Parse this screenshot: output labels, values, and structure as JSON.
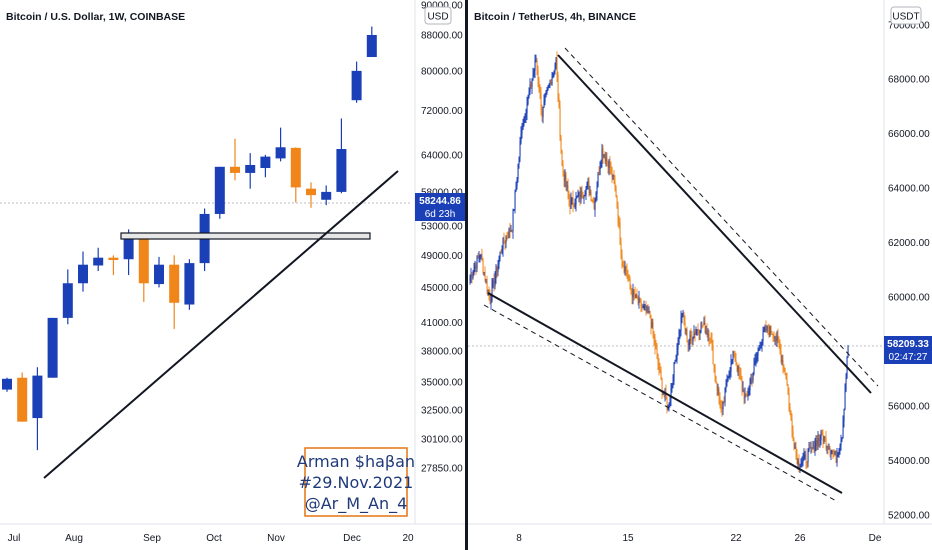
{
  "chart_data": [
    {
      "type": "candlestick",
      "title": "Bitcoin / U.S. Dollar, 1W, COINBASE",
      "currency": "USD",
      "price_ticks": [
        "90000.00",
        "88000.00",
        "80000.00",
        "72000.00",
        "64000.00",
        "58000.00",
        "53000.00",
        "49000.00",
        "45000.00",
        "41000.00",
        "38000.00",
        "35000.00",
        "32500.00",
        "30100.00",
        "27850.00"
      ],
      "time_labels": [
        "Jul",
        "Aug",
        "Sep",
        "Oct",
        "Nov",
        "Dec",
        "20"
      ],
      "last_price": "58244.86",
      "countdown": "6d 23h",
      "candles": [
        {
          "o": 34300,
          "c": 35300,
          "h": 35400,
          "l": 34100
        },
        {
          "o": 35400,
          "c": 31500,
          "h": 35900,
          "l": 31500
        },
        {
          "o": 31800,
          "c": 35600,
          "h": 36400,
          "l": 29200
        },
        {
          "o": 35400,
          "c": 41500,
          "h": 41500,
          "l": 35400
        },
        {
          "o": 41500,
          "c": 45500,
          "h": 47200,
          "l": 40800
        },
        {
          "o": 45500,
          "c": 47800,
          "h": 49500,
          "l": 44500
        },
        {
          "o": 47700,
          "c": 48700,
          "h": 50000,
          "l": 47000
        },
        {
          "o": 48700,
          "c": 48400,
          "h": 49000,
          "l": 46500
        },
        {
          "o": 48500,
          "c": 51500,
          "h": 52500,
          "l": 46500
        },
        {
          "o": 51500,
          "c": 45500,
          "h": 51800,
          "l": 43300
        },
        {
          "o": 45400,
          "c": 47800,
          "h": 48800,
          "l": 45000
        },
        {
          "o": 47800,
          "c": 43200,
          "h": 49000,
          "l": 40300
        },
        {
          "o": 43000,
          "c": 48000,
          "h": 48500,
          "l": 42400
        },
        {
          "o": 48000,
          "c": 54700,
          "h": 55500,
          "l": 47000
        },
        {
          "o": 54700,
          "c": 62000,
          "h": 62000,
          "l": 54000
        },
        {
          "o": 62000,
          "c": 61000,
          "h": 66800,
          "l": 59800
        },
        {
          "o": 61000,
          "c": 62300,
          "h": 64300,
          "l": 58500
        },
        {
          "o": 61800,
          "c": 63700,
          "h": 64000,
          "l": 60300
        },
        {
          "o": 63400,
          "c": 65300,
          "h": 68800,
          "l": 62900
        },
        {
          "o": 65200,
          "c": 58700,
          "h": 65300,
          "l": 56400
        },
        {
          "o": 58500,
          "c": 57500,
          "h": 59500,
          "l": 55600
        },
        {
          "o": 56800,
          "c": 58000,
          "h": 59000,
          "l": 56000
        },
        {
          "o": 58000,
          "c": 65000,
          "h": 70500,
          "l": 57800
        },
        {
          "o": 74000,
          "c": 80000,
          "h": 82000,
          "l": 73500
        },
        {
          "o": 83000,
          "c": 88000,
          "h": 90000,
          "l": 83000
        }
      ],
      "annotations": {
        "support_zone": [
          53300,
          53900
        ]
      },
      "watermark": [
        "Arman $haβan",
        "#29.Nov.2021",
        "@Ar_M_An_4"
      ]
    },
    {
      "type": "candlestick",
      "title": "Bitcoin / TetherUS, 4h, BINANCE",
      "currency": "USDT",
      "price_ticks": [
        "70000.00",
        "68000.00",
        "66000.00",
        "64000.00",
        "62000.00",
        "60000.00",
        "58000.00",
        "56000.00",
        "54000.00",
        "52000.00"
      ],
      "time_labels": [
        "8",
        "15",
        "22",
        "26",
        "De"
      ],
      "last_price": "58209.33",
      "countdown": "02:47:27",
      "path": [
        [
          0,
          60700
        ],
        [
          10,
          61600
        ],
        [
          20,
          59900
        ],
        [
          32,
          61900
        ],
        [
          42,
          62600
        ],
        [
          52,
          66300
        ],
        [
          60,
          67600
        ],
        [
          66,
          68700
        ],
        [
          72,
          66700
        ],
        [
          78,
          67600
        ],
        [
          86,
          68700
        ],
        [
          92,
          64800
        ],
        [
          100,
          63400
        ],
        [
          110,
          63700
        ],
        [
          118,
          64100
        ],
        [
          124,
          63400
        ],
        [
          132,
          65400
        ],
        [
          140,
          64800
        ],
        [
          146,
          63800
        ],
        [
          152,
          61300
        ],
        [
          156,
          61000
        ],
        [
          160,
          60300
        ],
        [
          166,
          59900
        ],
        [
          172,
          59600
        ],
        [
          180,
          59300
        ],
        [
          186,
          58000
        ],
        [
          192,
          56700
        ],
        [
          198,
          55900
        ],
        [
          204,
          57400
        ],
        [
          212,
          59400
        ],
        [
          218,
          58300
        ],
        [
          224,
          58700
        ],
        [
          232,
          59000
        ],
        [
          240,
          58600
        ],
        [
          246,
          56900
        ],
        [
          252,
          55700
        ],
        [
          258,
          57200
        ],
        [
          264,
          57900
        ],
        [
          270,
          57000
        ],
        [
          276,
          56200
        ],
        [
          282,
          57100
        ],
        [
          290,
          58300
        ],
        [
          296,
          58800
        ],
        [
          304,
          58700
        ],
        [
          310,
          58000
        ],
        [
          316,
          57100
        ],
        [
          322,
          55100
        ],
        [
          328,
          53900
        ],
        [
          334,
          54000
        ],
        [
          340,
          54300
        ],
        [
          346,
          54700
        ],
        [
          352,
          54900
        ],
        [
          358,
          54600
        ],
        [
          366,
          54100
        ],
        [
          372,
          55000
        ],
        [
          378,
          58200
        ]
      ],
      "annotations": {
        "channel_upper": [
          [
            68800,
            8.4
          ],
          [
            55800,
            29.4
          ]
        ],
        "channel_lower": [
          [
            60050,
            4.2
          ],
          [
            53050,
            28.8
          ]
        ]
      }
    }
  ]
}
